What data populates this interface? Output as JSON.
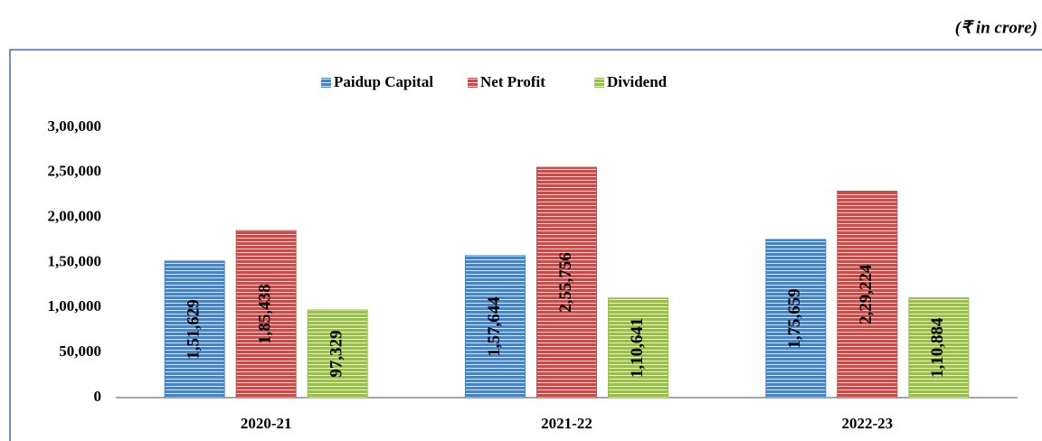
{
  "chart_data": {
    "type": "bar",
    "annotation": "(₹ in crore)",
    "categories": [
      "2020-21",
      "2021-22",
      "2022-23"
    ],
    "series": [
      {
        "name": "Paidup Capital",
        "color": "#4f81bd",
        "values": [
          151629,
          157644,
          175659
        ],
        "value_labels": [
          "1,51,629",
          "1,57,644",
          "1,75,659"
        ]
      },
      {
        "name": "Net Profit",
        "color": "#c0504d",
        "values": [
          185438,
          255756,
          229224
        ],
        "value_labels": [
          "1,85,438",
          "2,55,756",
          "2,29,224"
        ]
      },
      {
        "name": "Dividend",
        "color": "#9bbb59",
        "values": [
          97329,
          110641,
          110884
        ],
        "value_labels": [
          "97,329",
          "1,10,641",
          "1,10,884"
        ]
      }
    ],
    "ylim": [
      0,
      300000
    ],
    "yticks": [
      0,
      {
        "value": 50000,
        "label": "50,000"
      },
      {
        "value": 100000,
        "label": "1,00,000"
      },
      {
        "value": 150000,
        "label": "1,50,000"
      },
      {
        "value": 200000,
        "label": "2,00,000"
      },
      {
        "value": 250000,
        "label": "2,50,000"
      },
      {
        "value": 300000,
        "label": "3,00,000"
      }
    ],
    "grid": false,
    "legend": "top"
  }
}
